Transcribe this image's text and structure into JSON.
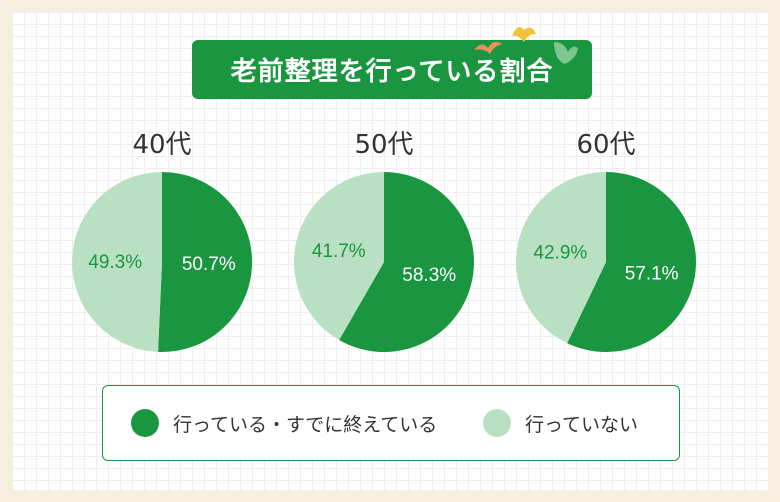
{
  "title": "老前整理を行っている割合",
  "colors": {
    "done": "#1a9640",
    "not_done": "#b9e0c3",
    "title_bg": "#1a9640"
  },
  "chart_data": [
    {
      "type": "pie",
      "title": "40代",
      "labels": [
        "行っている・すでに終えている",
        "行っていない"
      ],
      "values": [
        50.7,
        49.3
      ],
      "value_labels": [
        "50.7%",
        "49.3%"
      ]
    },
    {
      "type": "pie",
      "title": "50代",
      "labels": [
        "行っている・すでに終えている",
        "行っていない"
      ],
      "values": [
        58.3,
        41.7
      ],
      "value_labels": [
        "58.3%",
        "41.7%"
      ]
    },
    {
      "type": "pie",
      "title": "60代",
      "labels": [
        "行っている・すでに終えている",
        "行っていない"
      ],
      "values": [
        57.1,
        42.9
      ],
      "value_labels": [
        "57.1%",
        "42.9%"
      ]
    }
  ],
  "legend": [
    {
      "label": "行っている・すでに終えている",
      "color": "#1a9640"
    },
    {
      "label": "行っていない",
      "color": "#b9e0c3"
    }
  ]
}
